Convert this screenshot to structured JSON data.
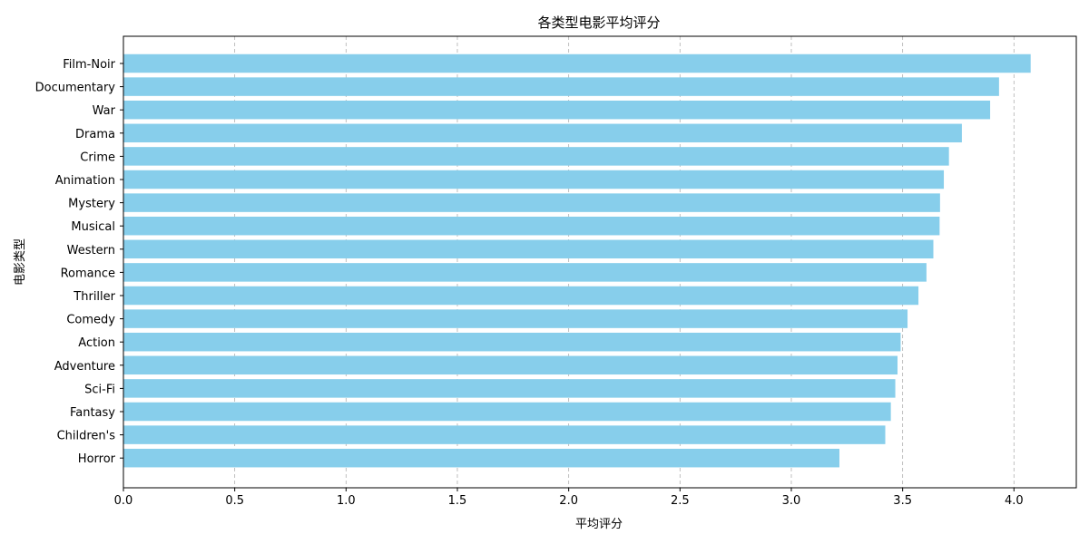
{
  "chart_data": {
    "type": "bar",
    "orientation": "horizontal",
    "title": "各类型电影平均评分",
    "xlabel": "平均评分",
    "ylabel": "电影类型",
    "xlim": [
      0,
      4.28
    ],
    "xticks": [
      0.0,
      0.5,
      1.0,
      1.5,
      2.0,
      2.5,
      3.0,
      3.5,
      4.0
    ],
    "xtick_labels": [
      "0.0",
      "0.5",
      "1.0",
      "1.5",
      "2.0",
      "2.5",
      "3.0",
      "3.5",
      "4.0"
    ],
    "grid": "x-axis, dashed",
    "bar_color": "#87CEEB",
    "categories": [
      "Film-Noir",
      "Documentary",
      "War",
      "Drama",
      "Crime",
      "Animation",
      "Mystery",
      "Musical",
      "Western",
      "Romance",
      "Thriller",
      "Comedy",
      "Action",
      "Adventure",
      "Sci-Fi",
      "Fantasy",
      "Children's",
      "Horror"
    ],
    "values": [
      4.075,
      3.933,
      3.893,
      3.766,
      3.708,
      3.685,
      3.668,
      3.666,
      3.638,
      3.607,
      3.571,
      3.522,
      3.491,
      3.477,
      3.467,
      3.447,
      3.422,
      3.216
    ]
  }
}
